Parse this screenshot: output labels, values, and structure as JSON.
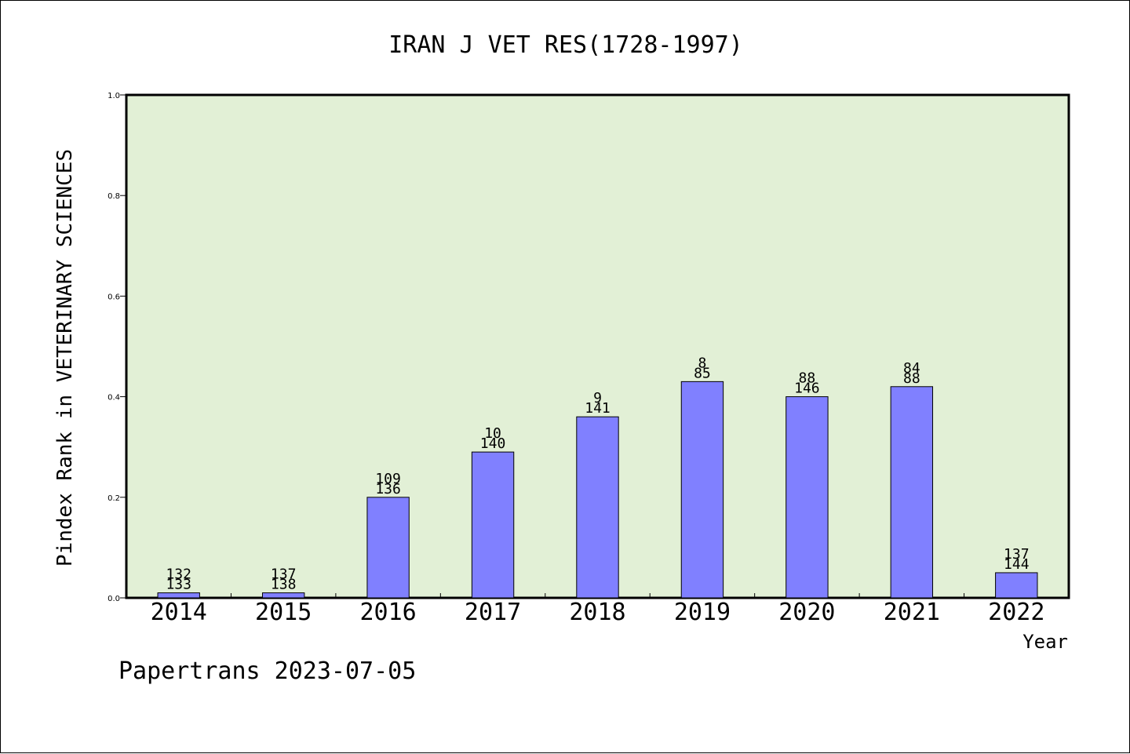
{
  "chart_data": {
    "type": "bar",
    "title": "IRAN J VET RES(1728-1997)",
    "ylabel": "Pindex Rank in VETERINARY SCIENCES",
    "xlabel": "Year",
    "categories": [
      "2014",
      "2015",
      "2016",
      "2017",
      "2018",
      "2019",
      "2020",
      "2021",
      "2022"
    ],
    "values": [
      0.01,
      0.01,
      0.2,
      0.29,
      0.36,
      0.43,
      0.4,
      0.42,
      0.05
    ],
    "labels_top": [
      "132",
      "137",
      "109",
      "10",
      "9",
      "8",
      "88",
      "84",
      "137"
    ],
    "labels_bottom": [
      "133",
      "138",
      "136",
      "140",
      "141",
      "85",
      "146",
      "88",
      "144"
    ],
    "ylim": [
      0,
      1.0
    ],
    "yticks": [
      "0.0",
      "0.2",
      "0.4",
      "0.6",
      "0.8",
      "1.0"
    ],
    "grid": false,
    "colors": {
      "plot_background": "#e2f0d6",
      "bar_fill": "#8080ff",
      "bar_stroke": "#000000"
    }
  },
  "footer": "Papertrans 2023-07-05"
}
